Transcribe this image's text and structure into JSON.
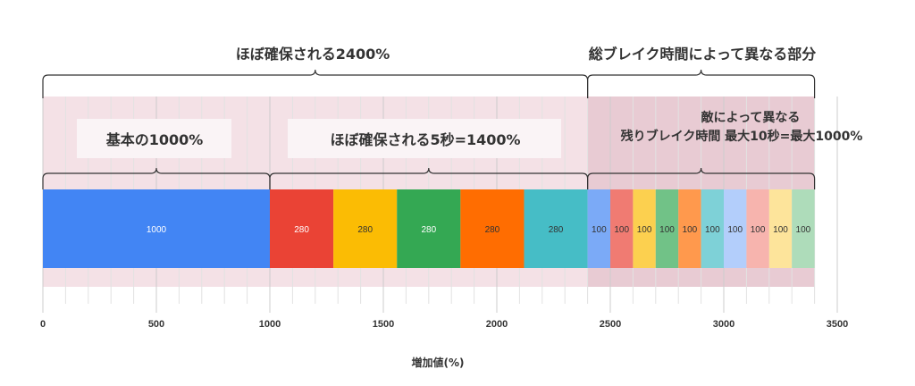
{
  "chart_data": {
    "type": "bar",
    "orientation": "horizontal-stacked",
    "xlabel": "増加値(%)",
    "ylabel": "",
    "xlim": [
      0,
      3500
    ],
    "xticks": [
      0,
      500,
      1000,
      1500,
      2000,
      2500,
      3000,
      3500
    ],
    "grid": true,
    "segments": [
      {
        "value": 1000,
        "label": "1000",
        "color": "#4285f4"
      },
      {
        "value": 280,
        "label": "280",
        "color": "#ea4335"
      },
      {
        "value": 280,
        "label": "280",
        "color": "#fbbc04"
      },
      {
        "value": 280,
        "label": "280",
        "color": "#34a853"
      },
      {
        "value": 280,
        "label": "280",
        "color": "#ff6d01"
      },
      {
        "value": 280,
        "label": "280",
        "color": "#46bdc6"
      },
      {
        "value": 100,
        "label": "100",
        "color": "#7baaf7"
      },
      {
        "value": 100,
        "label": "100",
        "color": "#f07b72"
      },
      {
        "value": 100,
        "label": "100",
        "color": "#fcd04f"
      },
      {
        "value": 100,
        "label": "100",
        "color": "#71c287"
      },
      {
        "value": 100,
        "label": "100",
        "color": "#ff994d"
      },
      {
        "value": 100,
        "label": "100",
        "color": "#7ed1d7"
      },
      {
        "value": 100,
        "label": "100",
        "color": "#b3cefb"
      },
      {
        "value": 100,
        "label": "100",
        "color": "#f7b4ae"
      },
      {
        "value": 100,
        "label": "100",
        "color": "#fde49b"
      },
      {
        "value": 100,
        "label": "100",
        "color": "#aedcba"
      }
    ],
    "annotations": {
      "top_left": {
        "text": "ほぼ確保される2400%",
        "from": 0,
        "to": 2400
      },
      "top_right": {
        "text": "総ブレイク時間によって異なる部分",
        "from": 2400,
        "to": 3400
      },
      "base": {
        "text": "基本の1000%",
        "from": 0,
        "to": 1000
      },
      "guaranteed5s": {
        "text": "ほぼ確保される5秒=1400%",
        "from": 1000,
        "to": 2400
      },
      "enemy": {
        "line1": "敵によって異なる",
        "line2": "残りブレイク時間 最大10秒=最大1000%",
        "from": 2400,
        "to": 3400
      }
    },
    "shading": {
      "guaranteed_color": "#f4e1e6",
      "variable_color": "#e8cbd3"
    }
  }
}
